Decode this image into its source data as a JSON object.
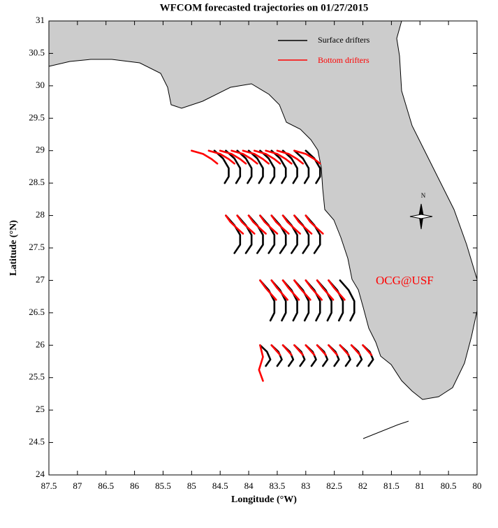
{
  "chart_data": {
    "type": "line",
    "title": "WFCOM forecasted trajectories on 01/27/2015",
    "x_label": "Longitude (°W)",
    "y_label": "Latitude (°N)",
    "xlim": [
      87.5,
      80
    ],
    "ylim": [
      24,
      31
    ],
    "xticks": [
      87.5,
      87,
      86.5,
      86,
      85.5,
      85,
      84.5,
      84,
      83.5,
      83,
      82.5,
      82,
      81.5,
      81,
      80.5,
      80
    ],
    "yticks": [
      24,
      24.5,
      25,
      25.5,
      26,
      26.5,
      27,
      27.5,
      28,
      28.5,
      29,
      29.5,
      30,
      30.5,
      31
    ],
    "annotations": [
      "OCG@USF",
      "N"
    ],
    "series": [
      {
        "name": "Surface drifters",
        "color": "#000000",
        "trajectories": [
          {
            "x": [
              84.6,
              84.45,
              84.35,
              84.35,
              84.42
            ],
            "y": [
              29,
              28.88,
              28.73,
              28.6,
              28.5
            ]
          },
          {
            "x": [
              84.4,
              84.25,
              84.15,
              84.15,
              84.22
            ],
            "y": [
              29,
              28.88,
              28.73,
              28.6,
              28.5
            ]
          },
          {
            "x": [
              84.2,
              84.05,
              83.95,
              83.95,
              84.02
            ],
            "y": [
              29,
              28.88,
              28.73,
              28.6,
              28.5
            ]
          },
          {
            "x": [
              84,
              83.85,
              83.75,
              83.75,
              83.82
            ],
            "y": [
              29,
              28.88,
              28.73,
              28.6,
              28.5
            ]
          },
          {
            "x": [
              83.8,
              83.65,
              83.55,
              83.55,
              83.62
            ],
            "y": [
              29,
              28.88,
              28.73,
              28.6,
              28.5
            ]
          },
          {
            "x": [
              83.6,
              83.45,
              83.35,
              83.35,
              83.42
            ],
            "y": [
              29,
              28.88,
              28.73,
              28.6,
              28.5
            ]
          },
          {
            "x": [
              83.4,
              83.25,
              83.15,
              83.15,
              83.22
            ],
            "y": [
              29,
              28.88,
              28.73,
              28.6,
              28.5
            ]
          },
          {
            "x": [
              83.2,
              83.05,
              82.95,
              82.95,
              83.02
            ],
            "y": [
              29,
              28.88,
              28.73,
              28.6,
              28.5
            ]
          },
          {
            "x": [
              83,
              82.85,
              82.75,
              82.75,
              82.82
            ],
            "y": [
              29,
              28.88,
              28.73,
              28.6,
              28.5
            ]
          },
          {
            "x": [
              84.4,
              84.25,
              84.15,
              84.15,
              84.25
            ],
            "y": [
              28,
              27.85,
              27.7,
              27.55,
              27.42
            ]
          },
          {
            "x": [
              84.2,
              84.05,
              83.95,
              83.95,
              84.05
            ],
            "y": [
              28,
              27.85,
              27.7,
              27.55,
              27.42
            ]
          },
          {
            "x": [
              84,
              83.85,
              83.75,
              83.75,
              83.85
            ],
            "y": [
              28,
              27.85,
              27.7,
              27.55,
              27.42
            ]
          },
          {
            "x": [
              83.8,
              83.65,
              83.55,
              83.55,
              83.65
            ],
            "y": [
              28,
              27.85,
              27.7,
              27.55,
              27.42
            ]
          },
          {
            "x": [
              83.6,
              83.45,
              83.35,
              83.35,
              83.45
            ],
            "y": [
              28,
              27.85,
              27.7,
              27.55,
              27.42
            ]
          },
          {
            "x": [
              83.4,
              83.25,
              83.15,
              83.15,
              83.25
            ],
            "y": [
              28,
              27.85,
              27.7,
              27.55,
              27.42
            ]
          },
          {
            "x": [
              83.2,
              83.05,
              82.95,
              82.95,
              83.05
            ],
            "y": [
              28,
              27.85,
              27.7,
              27.55,
              27.42
            ]
          },
          {
            "x": [
              83,
              82.85,
              82.75,
              82.75,
              82.85
            ],
            "y": [
              28,
              27.85,
              27.7,
              27.55,
              27.42
            ]
          },
          {
            "x": [
              83.8,
              83.65,
              83.55,
              83.55,
              83.62
            ],
            "y": [
              27,
              26.85,
              26.68,
              26.5,
              26.38
            ]
          },
          {
            "x": [
              83.6,
              83.45,
              83.35,
              83.35,
              83.42
            ],
            "y": [
              27,
              26.85,
              26.68,
              26.5,
              26.38
            ]
          },
          {
            "x": [
              83.4,
              83.25,
              83.15,
              83.15,
              83.22
            ],
            "y": [
              27,
              26.85,
              26.68,
              26.5,
              26.38
            ]
          },
          {
            "x": [
              83.2,
              83.05,
              82.95,
              82.95,
              83.02
            ],
            "y": [
              27,
              26.85,
              26.68,
              26.5,
              26.38
            ]
          },
          {
            "x": [
              83,
              82.85,
              82.75,
              82.75,
              82.82
            ],
            "y": [
              27,
              26.85,
              26.68,
              26.5,
              26.38
            ]
          },
          {
            "x": [
              82.8,
              82.65,
              82.55,
              82.55,
              82.62
            ],
            "y": [
              27,
              26.85,
              26.68,
              26.5,
              26.38
            ]
          },
          {
            "x": [
              82.6,
              82.45,
              82.35,
              82.35,
              82.42
            ],
            "y": [
              27,
              26.85,
              26.68,
              26.5,
              26.38
            ]
          },
          {
            "x": [
              82.4,
              82.25,
              82.15,
              82.15,
              82.22
            ],
            "y": [
              27,
              26.85,
              26.68,
              26.5,
              26.38
            ]
          },
          {
            "x": [
              83.8,
              83.68,
              83.62,
              83.7
            ],
            "y": [
              26,
              25.9,
              25.78,
              25.68
            ]
          },
          {
            "x": [
              83.6,
              83.48,
              83.42,
              83.5
            ],
            "y": [
              26,
              25.9,
              25.78,
              25.68
            ]
          },
          {
            "x": [
              83.4,
              83.28,
              83.22,
              83.3
            ],
            "y": [
              26,
              25.9,
              25.78,
              25.68
            ]
          },
          {
            "x": [
              83.2,
              83.08,
              83.02,
              83.1
            ],
            "y": [
              26,
              25.9,
              25.78,
              25.68
            ]
          },
          {
            "x": [
              83,
              82.88,
              82.82,
              82.9
            ],
            "y": [
              26,
              25.9,
              25.78,
              25.68
            ]
          },
          {
            "x": [
              82.8,
              82.68,
              82.62,
              82.7
            ],
            "y": [
              26,
              25.9,
              25.78,
              25.68
            ]
          },
          {
            "x": [
              82.6,
              82.48,
              82.42,
              82.5
            ],
            "y": [
              26,
              25.9,
              25.78,
              25.68
            ]
          },
          {
            "x": [
              82.4,
              82.28,
              82.22,
              82.3
            ],
            "y": [
              26,
              25.9,
              25.78,
              25.68
            ]
          },
          {
            "x": [
              82.2,
              82.08,
              82.02,
              82.1
            ],
            "y": [
              26,
              25.9,
              25.78,
              25.68
            ]
          },
          {
            "x": [
              82,
              81.88,
              81.82,
              81.9
            ],
            "y": [
              26,
              25.9,
              25.78,
              25.68
            ]
          }
        ]
      },
      {
        "name": "Bottom drifters",
        "color": "#ff0000",
        "trajectories": [
          {
            "x": [
              85,
              84.8,
              84.65,
              84.55
            ],
            "y": [
              29,
              28.95,
              28.87,
              28.8
            ]
          },
          {
            "x": [
              84.7,
              84.5,
              84.35,
              84.25
            ],
            "y": [
              29,
              28.95,
              28.87,
              28.8
            ]
          },
          {
            "x": [
              84.5,
              84.3,
              84.15,
              84.05
            ],
            "y": [
              29,
              28.95,
              28.87,
              28.8
            ]
          },
          {
            "x": [
              84.3,
              84.1,
              83.95,
              83.85
            ],
            "y": [
              29,
              28.95,
              28.87,
              28.8
            ]
          },
          {
            "x": [
              84.1,
              83.9,
              83.75,
              83.65
            ],
            "y": [
              29,
              28.95,
              28.87,
              28.8
            ]
          },
          {
            "x": [
              83.9,
              83.7,
              83.55,
              83.45
            ],
            "y": [
              29,
              28.95,
              28.87,
              28.8
            ]
          },
          {
            "x": [
              83.7,
              83.5,
              83.35,
              83.25
            ],
            "y": [
              29,
              28.95,
              28.87,
              28.8
            ]
          },
          {
            "x": [
              83.5,
              83.3,
              83.15,
              83.05
            ],
            "y": [
              29,
              28.95,
              28.87,
              28.8
            ]
          },
          {
            "x": [
              83.2,
              83,
              82.85,
              82.75
            ],
            "y": [
              29,
              28.95,
              28.87,
              28.8
            ]
          },
          {
            "x": [
              84.4,
              84.32,
              84.2,
              84.1
            ],
            "y": [
              28,
              27.9,
              27.8,
              27.72
            ]
          },
          {
            "x": [
              84.2,
              84.12,
              84,
              83.9
            ],
            "y": [
              28,
              27.9,
              27.8,
              27.72
            ]
          },
          {
            "x": [
              84,
              83.92,
              83.8,
              83.7
            ],
            "y": [
              28,
              27.9,
              27.8,
              27.72
            ]
          },
          {
            "x": [
              83.8,
              83.72,
              83.6,
              83.5
            ],
            "y": [
              28,
              27.9,
              27.8,
              27.72
            ]
          },
          {
            "x": [
              83.6,
              83.52,
              83.4,
              83.3
            ],
            "y": [
              28,
              27.9,
              27.8,
              27.72
            ]
          },
          {
            "x": [
              83.4,
              83.32,
              83.2,
              83.1
            ],
            "y": [
              28,
              27.9,
              27.8,
              27.72
            ]
          },
          {
            "x": [
              83.2,
              83.12,
              83,
              82.9
            ],
            "y": [
              28,
              27.9,
              27.8,
              27.72
            ]
          },
          {
            "x": [
              83,
              82.92,
              82.8,
              82.7
            ],
            "y": [
              28,
              27.9,
              27.8,
              27.72
            ]
          },
          {
            "x": [
              83.8,
              83.7,
              83.6,
              83.52
            ],
            "y": [
              27,
              26.88,
              26.78,
              26.7
            ]
          },
          {
            "x": [
              83.6,
              83.5,
              83.4,
              83.32
            ],
            "y": [
              27,
              26.88,
              26.78,
              26.7
            ]
          },
          {
            "x": [
              83.4,
              83.3,
              83.2,
              83.12
            ],
            "y": [
              27,
              26.88,
              26.78,
              26.7
            ]
          },
          {
            "x": [
              83.2,
              83.1,
              83,
              82.92
            ],
            "y": [
              27,
              26.88,
              26.78,
              26.7
            ]
          },
          {
            "x": [
              83,
              82.9,
              82.8,
              82.72
            ],
            "y": [
              27,
              26.88,
              26.78,
              26.7
            ]
          },
          {
            "x": [
              82.8,
              82.7,
              82.6,
              82.52
            ],
            "y": [
              27,
              26.88,
              26.78,
              26.7
            ]
          },
          {
            "x": [
              82.6,
              82.5,
              82.4,
              82.32
            ],
            "y": [
              27,
              26.88,
              26.78,
              26.7
            ]
          },
          {
            "x": [
              83.8,
              83.75,
              83.82,
              83.75
            ],
            "y": [
              26,
              25.82,
              25.62,
              25.45
            ]
          },
          {
            "x": [
              83.6,
              83.52,
              83.45
            ],
            "y": [
              26,
              25.92,
              25.85
            ]
          },
          {
            "x": [
              83.4,
              83.32,
              83.25
            ],
            "y": [
              26,
              25.92,
              25.85
            ]
          },
          {
            "x": [
              83.2,
              83.12,
              83.05
            ],
            "y": [
              26,
              25.92,
              25.85
            ]
          },
          {
            "x": [
              83,
              82.92,
              82.85
            ],
            "y": [
              26,
              25.92,
              25.85
            ]
          },
          {
            "x": [
              82.8,
              82.72,
              82.65
            ],
            "y": [
              26,
              25.92,
              25.85
            ]
          },
          {
            "x": [
              82.6,
              82.52,
              82.45
            ],
            "y": [
              26,
              25.92,
              25.85
            ]
          },
          {
            "x": [
              82.4,
              82.32,
              82.25
            ],
            "y": [
              26,
              25.92,
              25.85
            ]
          },
          {
            "x": [
              82.2,
              82.12,
              82.05
            ],
            "y": [
              26,
              25.92,
              25.85
            ]
          },
          {
            "x": [
              82,
              81.92,
              81.85
            ],
            "y": [
              26,
              25.92,
              25.85
            ]
          }
        ]
      }
    ]
  }
}
